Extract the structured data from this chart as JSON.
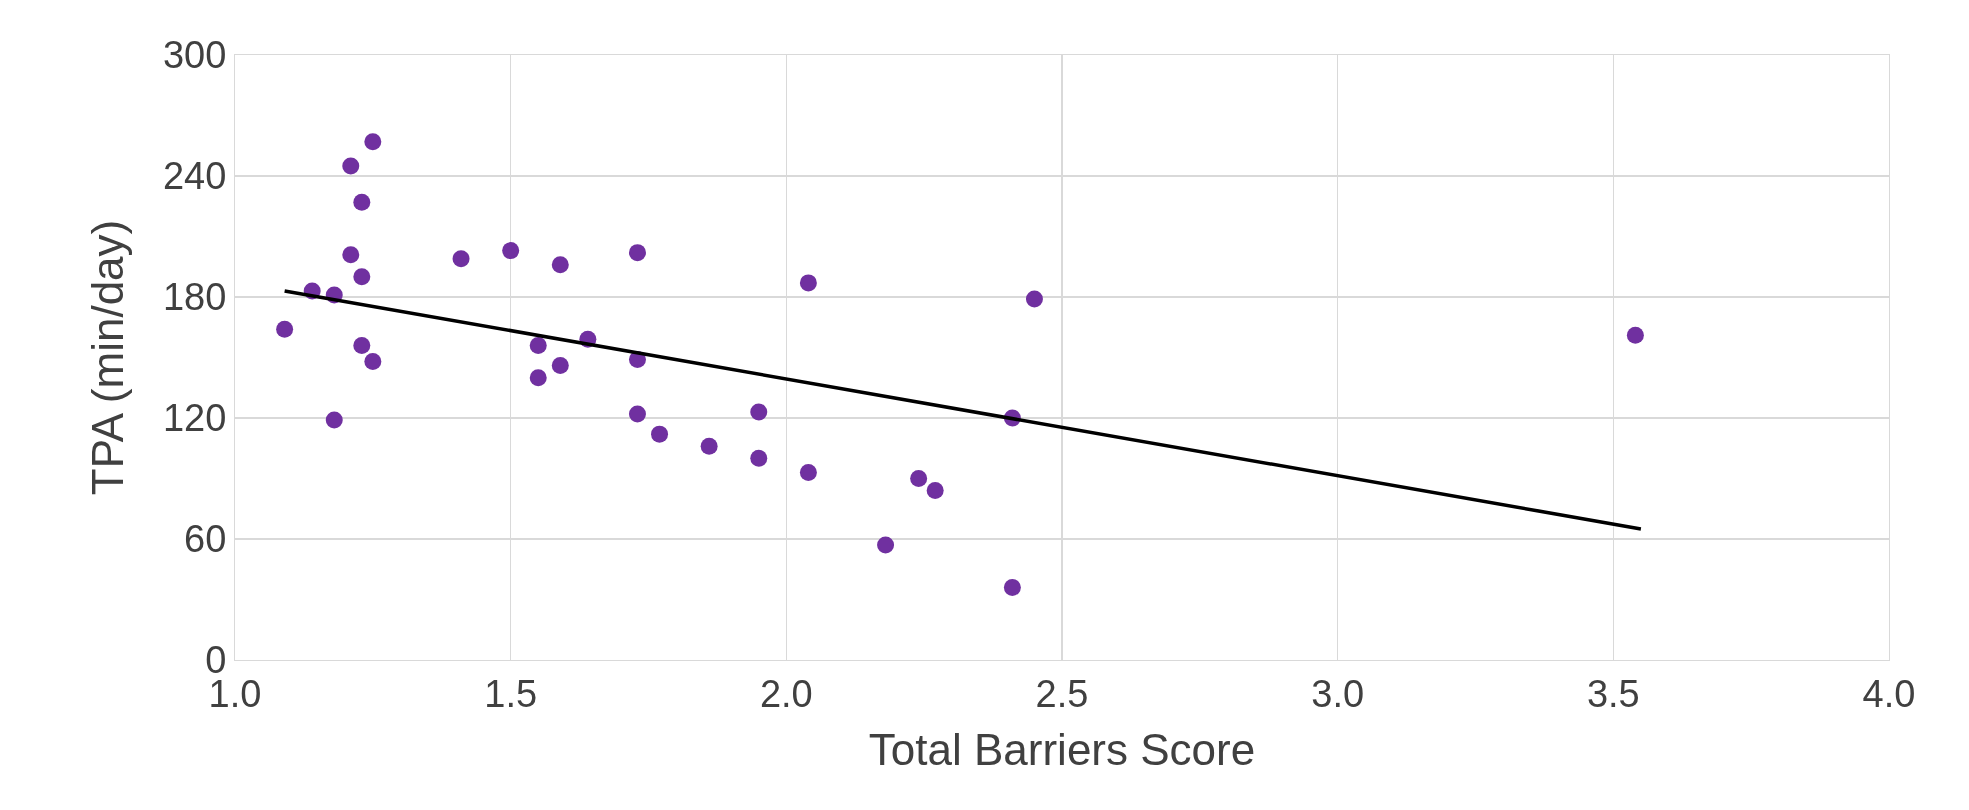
{
  "chart_data": {
    "type": "scatter",
    "xlabel": "Total Barriers Score",
    "ylabel": "TPA (min/day)",
    "xlim": [
      1.0,
      4.0
    ],
    "xticks": [
      {
        "value": 1,
        "label": "1.0"
      },
      {
        "value": 1.5,
        "label": "1.5"
      },
      {
        "value": 2,
        "label": "2.0"
      },
      {
        "value": 2.5,
        "label": "2.5"
      },
      {
        "value": 3,
        "label": "3.0"
      },
      {
        "value": 3.5,
        "label": "3.5"
      },
      {
        "value": 4,
        "label": "4.0"
      }
    ],
    "ylim": [
      0,
      300
    ],
    "yticks": [
      0,
      60,
      120,
      180,
      240,
      300
    ],
    "grid": true,
    "series": [
      {
        "marker": "circle",
        "color": "#7030a0",
        "x": [
          1.09,
          1.14,
          1.18,
          1.18,
          1.23,
          1.23,
          1.23,
          1.21,
          1.21,
          1.25,
          1.25,
          1.41,
          1.5,
          1.55,
          1.55,
          1.59,
          1.59,
          1.64,
          1.73,
          1.73,
          1.73,
          1.77,
          1.86,
          1.95,
          1.95,
          2.04,
          2.04,
          2.18,
          2.24,
          2.27,
          2.41,
          2.41,
          2.45,
          3.54
        ],
        "values": [
          164,
          183,
          181,
          119,
          227,
          190,
          156,
          245,
          201,
          257,
          148,
          199,
          203,
          156,
          140,
          196,
          146,
          159,
          202,
          149,
          122,
          112,
          106,
          123,
          100,
          187,
          93,
          57,
          90,
          84,
          120,
          36,
          179,
          161
        ]
      },
      {
        "type": "line",
        "marker": "none",
        "color": "#000000",
        "line_style": "solid",
        "x": [
          1.09,
          3.55
        ],
        "values": [
          183,
          65
        ]
      }
    ]
  }
}
